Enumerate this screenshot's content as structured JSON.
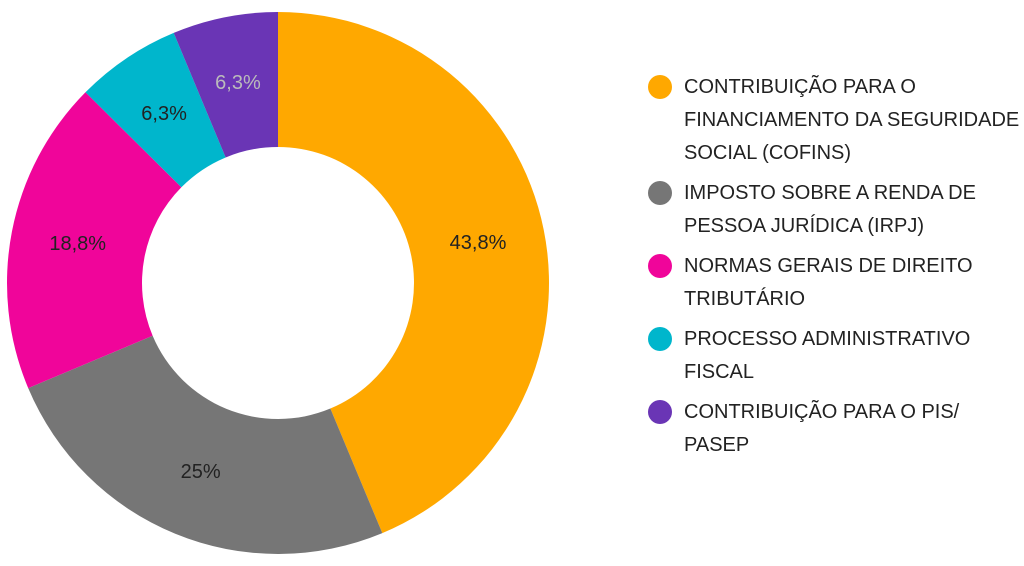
{
  "chart_data": {
    "type": "pie",
    "variant": "donut",
    "title": "",
    "legend_position": "right",
    "slices": [
      {
        "label": "CONTRIBUIÇÃO PARA O FINANCIAMENTO DA SEGURIDADE SOCIAL (COFINS)",
        "value": 43.8,
        "value_label": "43,8%",
        "color": "#FFA800",
        "label_color": "#222222"
      },
      {
        "label": "IMPOSTO SOBRE A RENDA DE PESSOA JURÍDICA (IRPJ)",
        "value": 25.0,
        "value_label": "25%",
        "color": "#767676",
        "label_color": "#222222"
      },
      {
        "label": "NORMAS GERAIS DE DIREITO TRIBUTÁRIO",
        "value": 18.8,
        "value_label": "18,8%",
        "color": "#F0059A",
        "label_color": "#222222"
      },
      {
        "label": "PROCESSO ADMINISTRATIVO FISCAL",
        "value": 6.3,
        "value_label": "6,3%",
        "color": "#00B6CC",
        "label_color": "#222222"
      },
      {
        "label": "CONTRIBUIÇÃO PARA O PIS/ PASEP",
        "value": 6.3,
        "value_label": "6,3%",
        "color": "#6A35B5",
        "label_color": "#BBBBBB"
      }
    ]
  }
}
